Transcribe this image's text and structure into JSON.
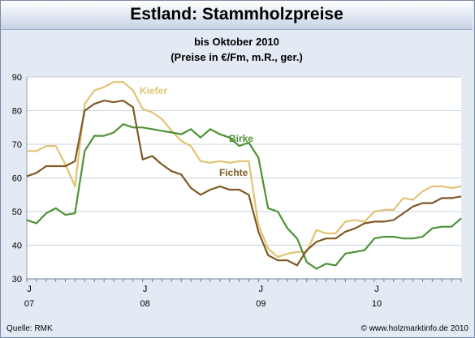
{
  "title": "Estland: Stammholzpreise",
  "subtitle_line1": "bis Oktober 2010",
  "subtitle_line2": "(Preise in €/Fm, m.R., ger.)",
  "source": "Quelle: RMK",
  "credit": "© www.holzmarktinfo.de 2010",
  "colors": {
    "frame_bg": "#e3eaf3",
    "plot_bg": "#ffffff",
    "grid": "#c8d2e0",
    "Kiefer": "#e2c375",
    "Birke": "#4c9234",
    "Fichte": "#7f5a24"
  },
  "chart_data": {
    "type": "line",
    "ylim": [
      30,
      90
    ],
    "yticks": [
      30,
      40,
      50,
      60,
      70,
      80,
      90
    ],
    "x_tick_labels": [
      {
        "index": 0,
        "top": "J",
        "bottom": "07"
      },
      {
        "index": 12,
        "top": "J",
        "bottom": "08"
      },
      {
        "index": 24,
        "top": "J",
        "bottom": "09"
      },
      {
        "index": 36,
        "top": "J",
        "bottom": "10"
      }
    ],
    "x_count": 46,
    "grid": true,
    "series": [
      {
        "name": "Kiefer",
        "values": [
          68,
          68,
          69.5,
          69.5,
          64,
          57.5,
          82,
          86,
          87,
          88.5,
          88.5,
          86,
          80.5,
          79.5,
          77.5,
          74,
          71,
          69.5,
          65,
          64.5,
          65,
          64.5,
          65,
          65,
          46,
          39,
          36.5,
          37.5,
          38,
          38,
          44.5,
          43.5,
          43.5,
          47,
          47.5,
          47,
          50,
          50.5,
          50.5,
          54,
          53.5,
          56,
          57.5,
          57.5,
          57,
          57.5
        ]
      },
      {
        "name": "Birke",
        "values": [
          47.5,
          46.5,
          49.5,
          51,
          49,
          49.5,
          68,
          72.5,
          72.5,
          73.5,
          76,
          75,
          75,
          74.5,
          74,
          73.5,
          73,
          74.5,
          72,
          74.5,
          73,
          72,
          69.5,
          70.5,
          66,
          51,
          50,
          45,
          42,
          35,
          33,
          34.5,
          34,
          37.5,
          38,
          38.5,
          42,
          42.5,
          42.5,
          42,
          42,
          42.5,
          45,
          45.5,
          45.5,
          48
        ]
      },
      {
        "name": "Fichte",
        "values": [
          60.5,
          61.5,
          63.5,
          63.5,
          63.5,
          65,
          80,
          82,
          83,
          82.5,
          83,
          81,
          65.5,
          66.5,
          64,
          62,
          61,
          57,
          55,
          56.5,
          57.5,
          56.5,
          56.5,
          55,
          44,
          37,
          35.5,
          35.5,
          34,
          38.5,
          41,
          42,
          42,
          44,
          45,
          46.5,
          47,
          47,
          47.5,
          49.5,
          51.5,
          52.5,
          52.5,
          54,
          54,
          54.5
        ]
      }
    ]
  }
}
